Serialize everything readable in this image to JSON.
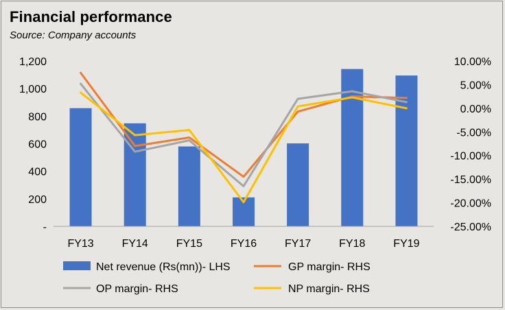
{
  "chart_data": {
    "type": "bar",
    "title": "Financial performance",
    "subtitle": "Source: Company accounts",
    "categories": [
      "FY13",
      "FY14",
      "FY15",
      "FY16",
      "FY17",
      "FY18",
      "FY19"
    ],
    "left_axis": {
      "min": 0,
      "max": 1200,
      "step": 200,
      "tick_labels": [
        "-",
        "200",
        "400",
        "600",
        "800",
        "1,000",
        "1,200"
      ]
    },
    "right_axis": {
      "min": -25,
      "max": 10,
      "step": 5,
      "tick_labels": [
        "-25.00%",
        "-20.00%",
        "-15.00%",
        "-10.00%",
        "-5.00%",
        "0.00%",
        "5.00%",
        "10.00%"
      ]
    },
    "series": [
      {
        "name": "Net revenue (Rs(mn))- LHS",
        "type": "bar",
        "axis": "left",
        "color": "#4472c4",
        "values": [
          858,
          748,
          580,
          210,
          602,
          1142,
          1095
        ]
      },
      {
        "name": "GP margin- RHS",
        "type": "line",
        "axis": "right",
        "color": "#ed7d31",
        "values": [
          7.5,
          -8.0,
          -6.2,
          -14.5,
          -0.7,
          2.5,
          2.2
        ]
      },
      {
        "name": "OP margin- RHS",
        "type": "line",
        "axis": "right",
        "color": "#a5a5a5",
        "values": [
          5.2,
          -9.2,
          -6.8,
          -16.5,
          2.0,
          3.6,
          1.3
        ]
      },
      {
        "name": "NP margin- RHS",
        "type": "line",
        "axis": "right",
        "color": "#ffc000",
        "values": [
          3.3,
          -5.7,
          -4.6,
          -19.9,
          0.4,
          2.3,
          0.0
        ]
      }
    ],
    "grid": false,
    "legend": "bottom"
  }
}
